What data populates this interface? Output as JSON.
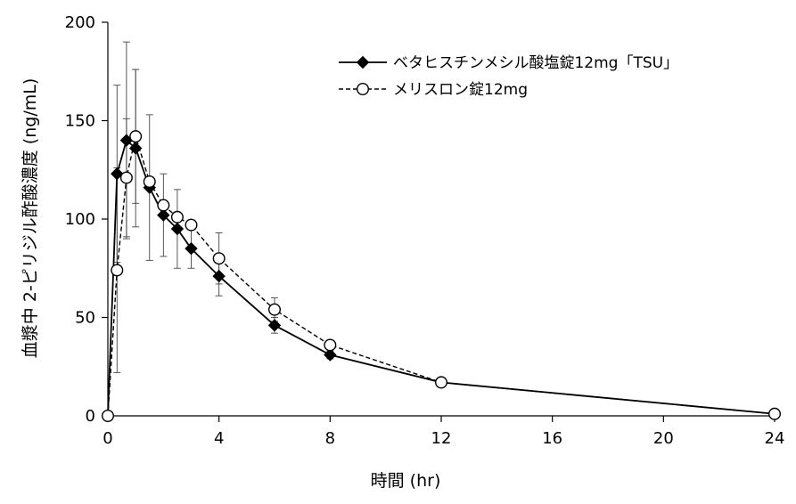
{
  "chart_data": {
    "type": "line",
    "title": "",
    "xlabel": "時間 (hr)",
    "ylabel": "血漿中 2-ピリジル酢酸濃度 (ng/mL)",
    "xlim": [
      0,
      24
    ],
    "ylim": [
      0,
      200
    ],
    "x_ticks": [
      0,
      4,
      8,
      12,
      16,
      20,
      24
    ],
    "y_ticks": [
      0,
      50,
      100,
      150,
      200
    ],
    "x_tick_labels": [
      "0",
      "4",
      "8",
      "12",
      "16",
      "20",
      "24"
    ],
    "y_tick_labels": [
      "0",
      "50",
      "100",
      "150",
      "200"
    ],
    "grid": false,
    "legend_position": "top-right",
    "series": [
      {
        "name": "ベタヒスチンメシル酸塩錠12mg「TSU」",
        "marker": "diamond-filled",
        "line": "solid",
        "color": "#000000",
        "x": [
          0,
          0.33,
          0.67,
          1,
          1.5,
          2,
          2.5,
          3,
          4,
          6,
          8,
          12,
          24
        ],
        "y": [
          0,
          123,
          140,
          136,
          116,
          102,
          95,
          85,
          71,
          46,
          31,
          17,
          1
        ],
        "error": [
          0,
          45,
          50,
          40,
          37,
          21,
          20,
          10,
          10,
          4,
          2,
          1,
          0
        ]
      },
      {
        "name": "メリスロン錠12mg",
        "marker": "circle-open",
        "line": "dashed",
        "color": "#000000",
        "x": [
          0,
          0.33,
          0.67,
          1,
          1.5,
          2,
          2.5,
          3,
          4,
          6,
          8,
          12,
          24
        ],
        "y": [
          0,
          74,
          121,
          142,
          119,
          107,
          101,
          97,
          80,
          54,
          36,
          17,
          1
        ],
        "error": [
          0,
          52,
          30,
          34,
          0,
          0,
          0,
          0,
          13,
          6,
          0,
          0,
          0
        ]
      }
    ]
  }
}
